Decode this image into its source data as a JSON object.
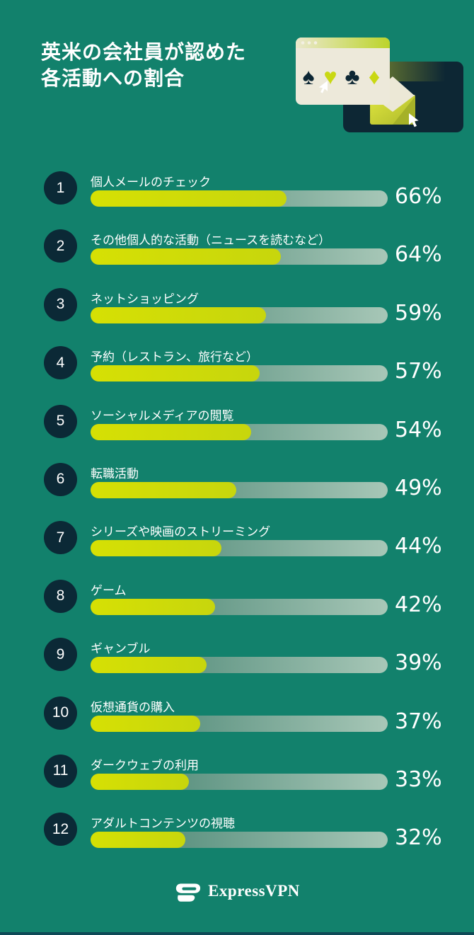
{
  "title": {
    "line1": "英米の会社員が認めた",
    "line2": "各活動への割合"
  },
  "chart_data": {
    "type": "bar",
    "orientation": "horizontal",
    "title": "英米の会社員が認めた各活動への割合",
    "unit": "%",
    "value_axis_max": 100,
    "grid": false,
    "legend": false,
    "categories": [
      "個人メールのチェック",
      "その他個人的な活動（ニュースを読むなど）",
      "ネットショッピング",
      "予約（レストラン、旅行など）",
      "ソーシャルメディアの閲覧",
      "転職活動",
      "シリーズや映画のストリーミング",
      "ゲーム",
      "ギャンブル",
      "仮想通貨の購入",
      "ダークウェブの利用",
      "アダルトコンテンツの視聴"
    ],
    "values": [
      66,
      64,
      59,
      57,
      54,
      49,
      44,
      42,
      39,
      37,
      33,
      32
    ],
    "items": [
      {
        "rank": "1",
        "label": "個人メールのチェック",
        "value": 66,
        "display": "66%"
      },
      {
        "rank": "2",
        "label": "その他個人的な活動（ニュースを読むなど）",
        "value": 64,
        "display": "64%"
      },
      {
        "rank": "3",
        "label": "ネットショッピング",
        "value": 59,
        "display": "59%"
      },
      {
        "rank": "4",
        "label": "予約（レストラン、旅行など）",
        "value": 57,
        "display": "57%"
      },
      {
        "rank": "5",
        "label": "ソーシャルメディアの閲覧",
        "value": 54,
        "display": "54%"
      },
      {
        "rank": "6",
        "label": "転職活動",
        "value": 49,
        "display": "49%"
      },
      {
        "rank": "7",
        "label": "シリーズや映画のストリーミング",
        "value": 44,
        "display": "44%"
      },
      {
        "rank": "8",
        "label": "ゲーム",
        "value": 42,
        "display": "42%"
      },
      {
        "rank": "9",
        "label": "ギャンブル",
        "value": 39,
        "display": "39%"
      },
      {
        "rank": "10",
        "label": "仮想通貨の購入",
        "value": 37,
        "display": "37%"
      },
      {
        "rank": "11",
        "label": "ダークウェブの利用",
        "value": 33,
        "display": "33%"
      },
      {
        "rank": "12",
        "label": "アダルトコンテンツの視聴",
        "value": 32,
        "display": "32%"
      }
    ]
  },
  "illustration": {
    "front_window": {
      "icon": "browser-window-icon",
      "suits": {
        "spade": "♠",
        "heart": "♥",
        "club": "♣",
        "diamond": "♦"
      }
    },
    "back_window": {
      "icon": "dark-browser-window-icon"
    },
    "envelope": {
      "icon": "envelope-icon"
    },
    "cursors": {
      "icon": "cursor-pointer-icon",
      "count": 2
    }
  },
  "footer": {
    "brand": "ExpressVPN"
  },
  "colors": {
    "background": "#12816C",
    "navy": "#0B2936",
    "bar_fill_lime": "#CFDB04",
    "track_gradient_start": "#3F7E6C",
    "track_gradient_end": "#A7C7B7",
    "cream": "#EDE9DA",
    "text": "#FFFFFF",
    "bottom_strip": "#0E4956"
  }
}
